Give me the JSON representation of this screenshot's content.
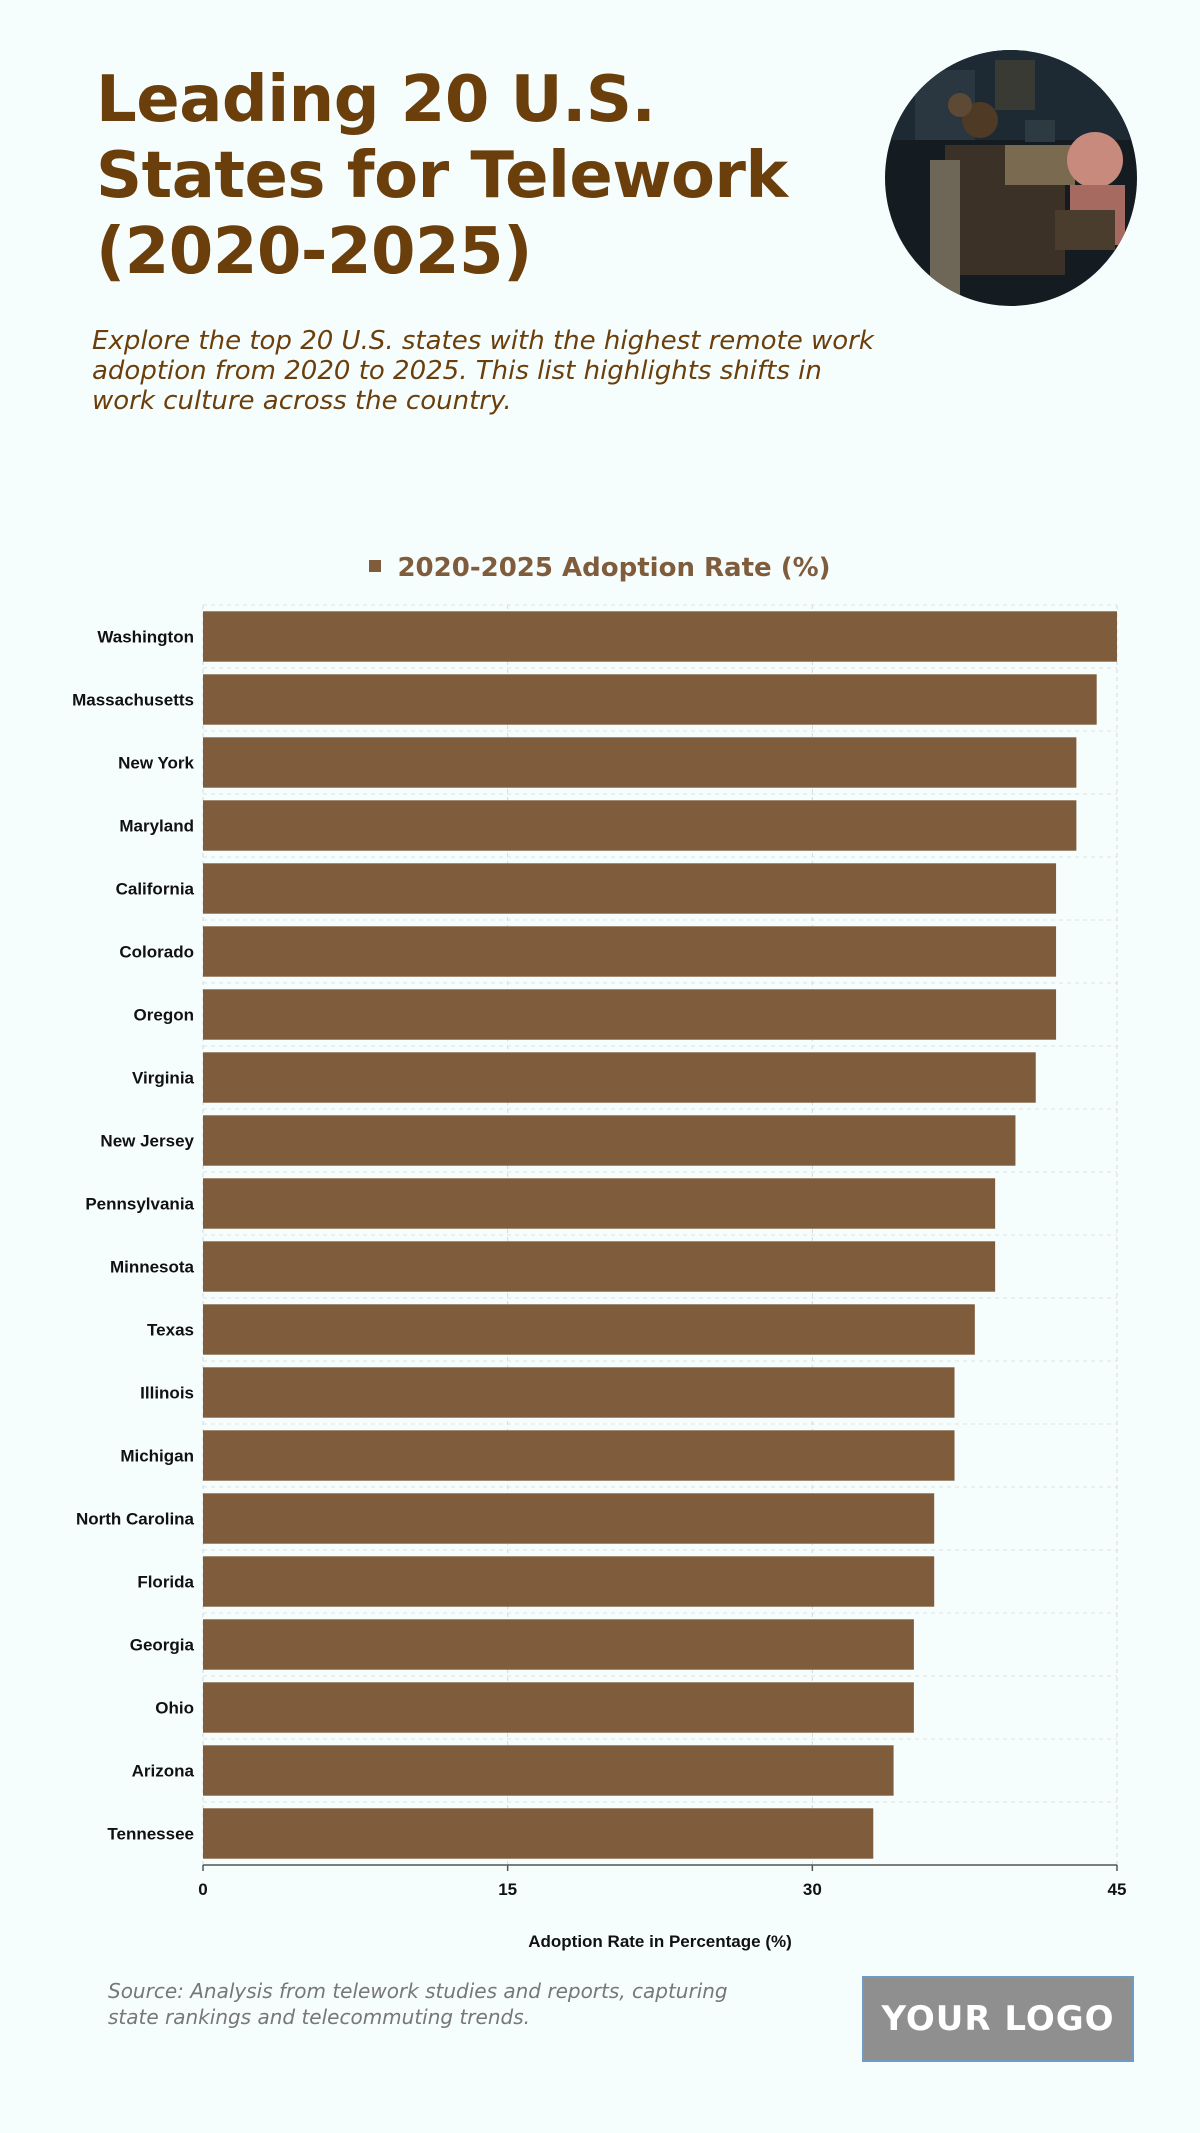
{
  "header": {
    "title": "Leading 20 U.S. States for Telework (2020-2025)",
    "subtitle": "Explore the top 20 U.S. states with the highest remote work adoption from 2020 to 2025. This list highlights shifts in work culture across the country."
  },
  "footer": {
    "source": "Source: Analysis from telework studies and reports, capturing state rankings and telecommuting trends.",
    "logo_text": "YOUR LOGO"
  },
  "colors": {
    "bar": "#7f5c3c",
    "title": "#6b3f0c",
    "background": "#f6fdfd"
  },
  "chart_data": {
    "type": "bar",
    "orientation": "horizontal",
    "categories": [
      "Washington",
      "Massachusetts",
      "New York",
      "Maryland",
      "California",
      "Colorado",
      "Oregon",
      "Virginia",
      "New Jersey",
      "Pennsylvania",
      "Minnesota",
      "Texas",
      "Illinois",
      "Michigan",
      "North Carolina",
      "Florida",
      "Georgia",
      "Ohio",
      "Arizona",
      "Tennessee"
    ],
    "series": [
      {
        "name": "2020-2025 Adoption Rate (%)",
        "values": [
          45,
          44,
          43,
          43,
          42,
          42,
          42,
          41,
          40,
          39,
          39,
          38,
          37,
          37,
          36,
          36,
          35,
          35,
          34,
          33
        ]
      }
    ],
    "xlabel": "Adoption Rate in Percentage (%)",
    "ylabel": "",
    "xlim": [
      0,
      45
    ],
    "xticks": [
      0,
      15,
      30,
      45
    ],
    "grid": true,
    "legend": "top-center"
  }
}
